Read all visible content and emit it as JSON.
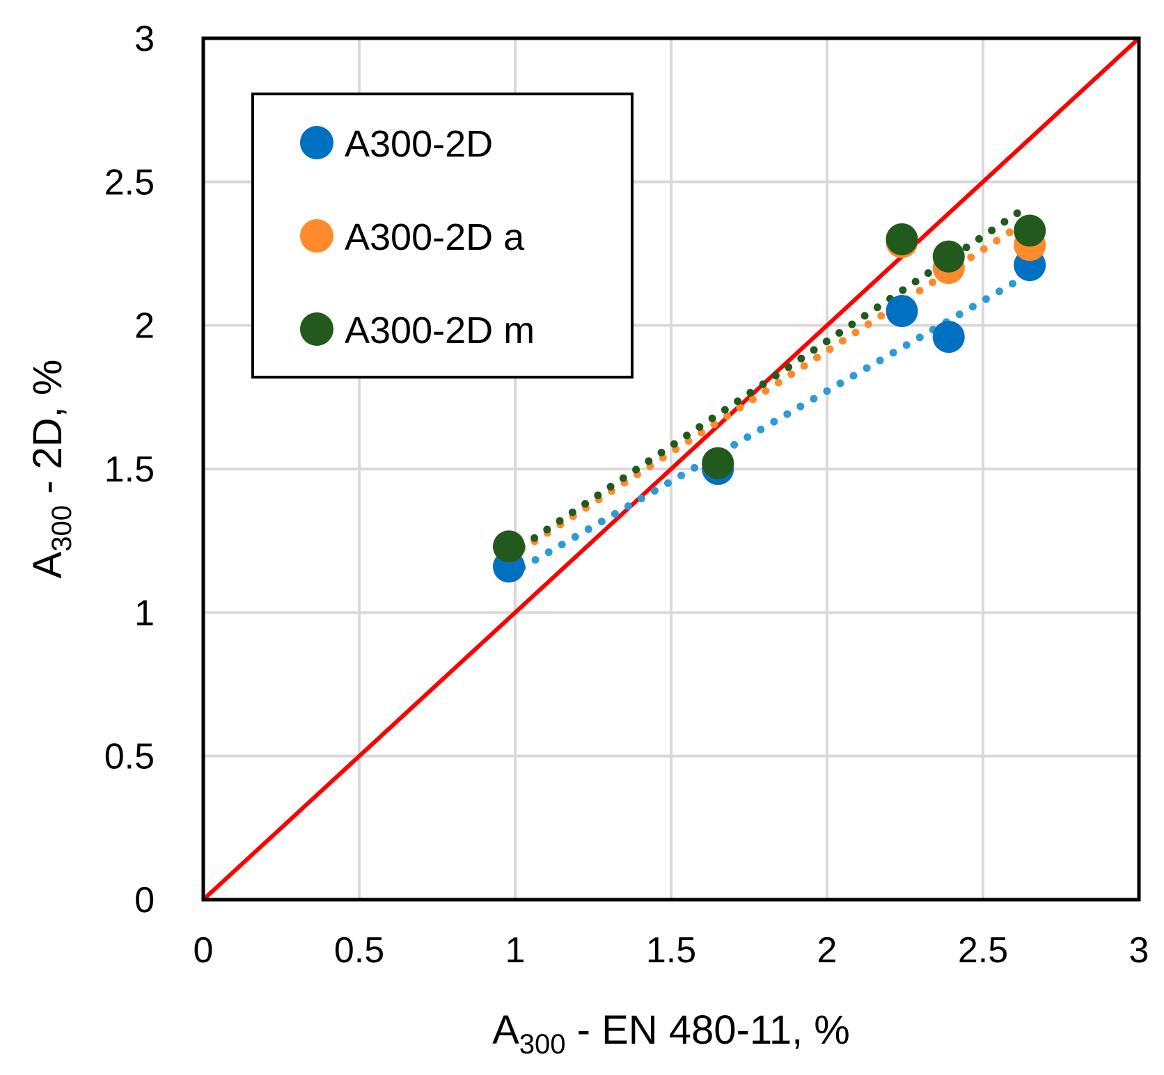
{
  "chart_data": {
    "type": "scatter",
    "xlim": [
      0,
      3
    ],
    "ylim": [
      0,
      3
    ],
    "x_ticks": [
      "0",
      "0.5",
      "1",
      "1.5",
      "2",
      "2.5",
      "3"
    ],
    "y_ticks": [
      "0",
      "0.5",
      "1",
      "1.5",
      "2",
      "2.5",
      "3"
    ],
    "xlabel": {
      "base": "A",
      "sub": "300",
      "rest": " - EN 480-11, %"
    },
    "ylabel": {
      "base": "A",
      "sub": "300",
      "rest": " - 2D, %"
    },
    "grid": true,
    "legend_position": "top-left",
    "reference_line": {
      "name": "y = x",
      "color": "#ff0000",
      "from": [
        0,
        0
      ],
      "to": [
        3,
        3
      ]
    },
    "series": [
      {
        "name": "A300-2D",
        "color": "#0070c0",
        "trend_color": "#2e9ad8",
        "points": [
          [
            0.98,
            1.16
          ],
          [
            1.65,
            1.5
          ],
          [
            2.24,
            2.05
          ],
          [
            2.39,
            1.96
          ],
          [
            2.65,
            2.21
          ]
        ],
        "trend": {
          "from": [
            0.98,
            1.13
          ],
          "to": [
            2.65,
            2.18
          ]
        }
      },
      {
        "name": "A300-2D a",
        "color": "#ff8a2b",
        "trend_color": "#ff8a2b",
        "points": [
          [
            0.98,
            1.23
          ],
          [
            1.65,
            1.52
          ],
          [
            2.24,
            2.29
          ],
          [
            2.39,
            2.2
          ],
          [
            2.65,
            2.28
          ]
        ],
        "trend": {
          "from": [
            0.98,
            1.19
          ],
          "to": [
            2.65,
            2.37
          ]
        }
      },
      {
        "name": "A300-2D m",
        "color": "#215a1c",
        "trend_color": "#215a1c",
        "points": [
          [
            0.98,
            1.23
          ],
          [
            1.65,
            1.52
          ],
          [
            2.24,
            2.3
          ],
          [
            2.39,
            2.24
          ],
          [
            2.65,
            2.33
          ]
        ],
        "trend": {
          "from": [
            0.98,
            1.2
          ],
          "to": [
            2.65,
            2.42
          ]
        }
      }
    ]
  }
}
